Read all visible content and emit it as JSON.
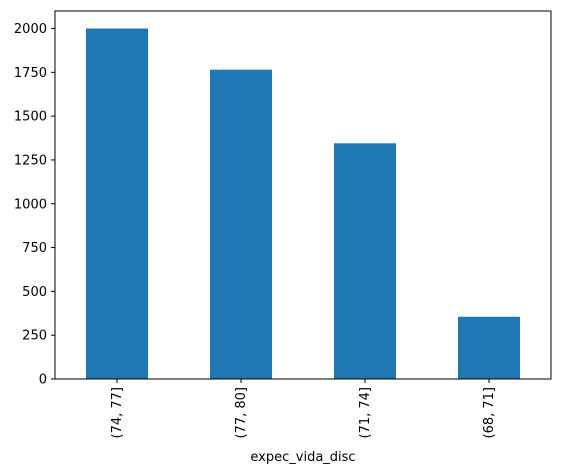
{
  "chart_data": {
    "type": "bar",
    "title": "",
    "xlabel": "expec_vida_disc",
    "ylabel": "",
    "categories": [
      "(74, 77]",
      "(77, 80]",
      "(71, 74]",
      "(68, 71]"
    ],
    "values": [
      2000,
      1765,
      1345,
      355
    ],
    "ylim": [
      0,
      2100
    ],
    "yticks": [
      0,
      250,
      500,
      750,
      1000,
      1250,
      1500,
      1750,
      2000
    ],
    "ytick_labels": [
      "0",
      "250",
      "500",
      "750",
      "1000",
      "1250",
      "1500",
      "1750",
      "2000"
    ],
    "bar_color": "#1f77b4",
    "grid": false,
    "legend": "none"
  }
}
